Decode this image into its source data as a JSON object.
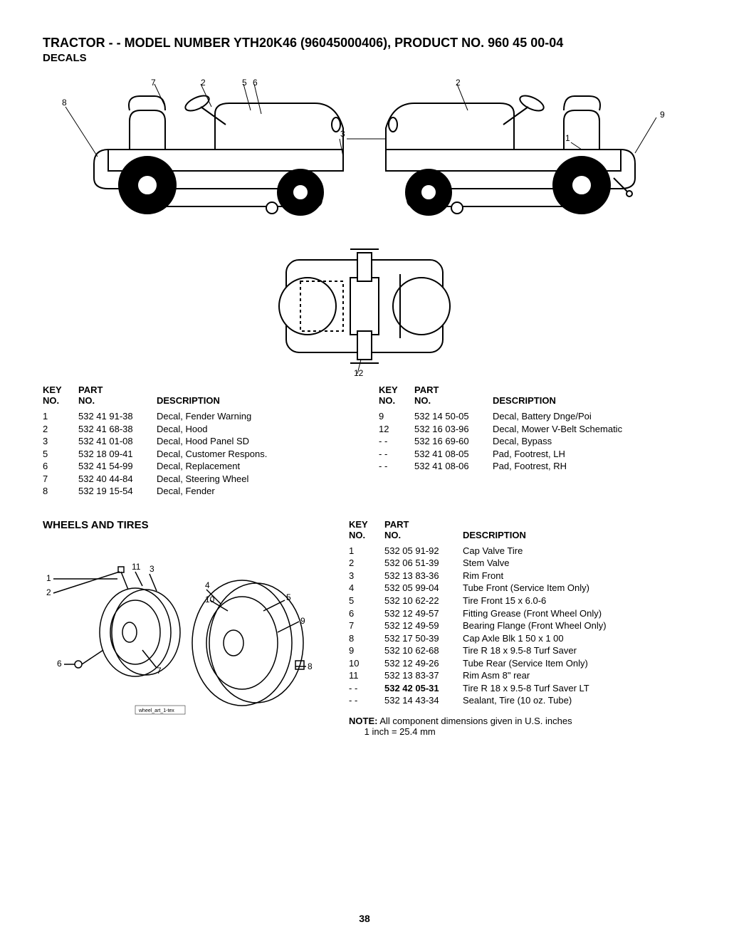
{
  "header": {
    "title": "TRACTOR - - MODEL NUMBER YTH20K46 (96045000406), PRODUCT NO. 960 45 00-04",
    "subtitle": "DECALS"
  },
  "decals_diagram": {
    "callouts_left": [
      "8",
      "7",
      "2",
      "5",
      "6",
      "3",
      "12"
    ],
    "callouts_right": [
      "2",
      "1",
      "9"
    ]
  },
  "decals_parts": {
    "headers": {
      "key": "KEY NO.",
      "part": "PART NO.",
      "desc": "DESCRIPTION"
    },
    "left": [
      {
        "key": "1",
        "part": "532 41 91-38",
        "desc": "Decal, Fender Warning"
      },
      {
        "key": "2",
        "part": "532 41 68-38",
        "desc": "Decal, Hood"
      },
      {
        "key": "3",
        "part": "532 41 01-08",
        "desc": "Decal, Hood Panel SD"
      },
      {
        "key": "5",
        "part": "532 18 09-41",
        "desc": "Decal, Customer Respons."
      },
      {
        "key": "6",
        "part": "532 41 54-99",
        "desc": "Decal, Replacement"
      },
      {
        "key": "7",
        "part": "532 40 44-84",
        "desc": "Decal, Steering Wheel"
      },
      {
        "key": "8",
        "part": "532 19 15-54",
        "desc": "Decal, Fender"
      }
    ],
    "right": [
      {
        "key": "9",
        "part": "532 14 50-05",
        "desc": "Decal, Battery Dnge/Poi"
      },
      {
        "key": "12",
        "part": "532 16 03-96",
        "desc": "Decal, Mower V-Belt Schematic"
      },
      {
        "key": "- -",
        "part": "532 16 69-60",
        "desc": "Decal, Bypass"
      },
      {
        "key": "- -",
        "part": "532 41 08-05",
        "desc": "Pad, Footrest, LH"
      },
      {
        "key": "- -",
        "part": "532 41 08-06",
        "desc": "Pad, Footrest, RH"
      }
    ]
  },
  "wheels": {
    "section_title": "WHEELS AND TIRES",
    "diagram_callouts": [
      "1",
      "2",
      "11",
      "3",
      "4",
      "10",
      "5",
      "9",
      "6",
      "7",
      "8"
    ],
    "caption": "wheel_art_1-tex",
    "headers": {
      "key": "KEY NO.",
      "part": "PART NO.",
      "desc": "DESCRIPTION"
    },
    "rows": [
      {
        "key": "1",
        "part": "532 05 91-92",
        "desc": "Cap Valve Tire",
        "bold": false
      },
      {
        "key": "2",
        "part": "532 06 51-39",
        "desc": "Stem Valve",
        "bold": false
      },
      {
        "key": "3",
        "part": "532 13 83-36",
        "desc": "Rim Front",
        "bold": false
      },
      {
        "key": "4",
        "part": "532 05 99-04",
        "desc": "Tube Front (Service Item Only)",
        "bold": false
      },
      {
        "key": "5",
        "part": "532 10 62-22",
        "desc": "Tire Front 15 x 6.0-6",
        "bold": false
      },
      {
        "key": "6",
        "part": "532 12 49-57",
        "desc": "Fitting Grease (Front Wheel Only)",
        "bold": false
      },
      {
        "key": "7",
        "part": "532 12 49-59",
        "desc": "Bearing Flange (Front Wheel Only)",
        "bold": false
      },
      {
        "key": "8",
        "part": "532 17 50-39",
        "desc": "Cap Axle Blk 1 50 x 1 00",
        "bold": false
      },
      {
        "key": "9",
        "part": "532 10 62-68",
        "desc": "Tire R 18 x 9.5-8 Turf Saver",
        "bold": false
      },
      {
        "key": "10",
        "part": "532 12 49-26",
        "desc": "Tube Rear (Service Item Only)",
        "bold": false
      },
      {
        "key": "11",
        "part": "532 13 83-37",
        "desc": "Rim Asm 8\" rear",
        "bold": false
      },
      {
        "key": "- -",
        "part": "532 42 05-31",
        "desc": "Tire R 18 x 9.5-8 Turf Saver LT",
        "bold": true
      },
      {
        "key": "- -",
        "part": "532 14 43-34",
        "desc": "Sealant, Tire (10 oz. Tube)",
        "bold": false
      }
    ],
    "note_label": "NOTE:",
    "note_text": " All component dimensions given in U.S. inches",
    "note_conversion": "1 inch = 25.4 mm"
  },
  "page_number": "38"
}
